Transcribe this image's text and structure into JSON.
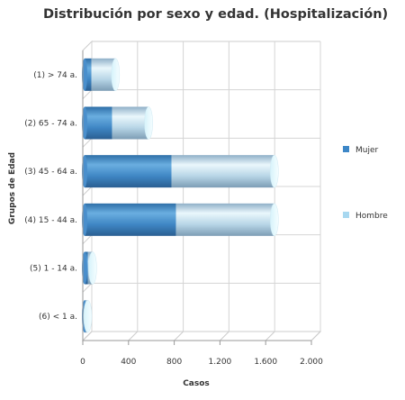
{
  "chart_data": {
    "type": "bar",
    "orientation": "horizontal",
    "stacked": true,
    "style": "3d-cylinder",
    "title": "Distribución por sexo y edad. (Hospitalización)",
    "xlabel": "Casos",
    "ylabel": "Grupos de Edad",
    "xlim": [
      0,
      2000
    ],
    "x_ticks": [
      "0",
      "400",
      "800",
      "1.200",
      "1.600",
      "2.000"
    ],
    "categories": [
      "(1) > 74 a.",
      "(2) 65 - 74 a.",
      "(3) 45 - 64 a.",
      "(4) 15 - 44 a.",
      "(5) 1 - 14 a.",
      "(6) < 1 a."
    ],
    "series": [
      {
        "name": "Mujer",
        "values": [
          60,
          240,
          760,
          800,
          30,
          2
        ]
      },
      {
        "name": "Hombre",
        "values": [
          210,
          320,
          900,
          860,
          40,
          25
        ]
      }
    ],
    "grid": true,
    "legend_position": "right",
    "colors": {
      "Mujer": "#3d87c7",
      "Hombre": "#a8d8f0"
    }
  }
}
